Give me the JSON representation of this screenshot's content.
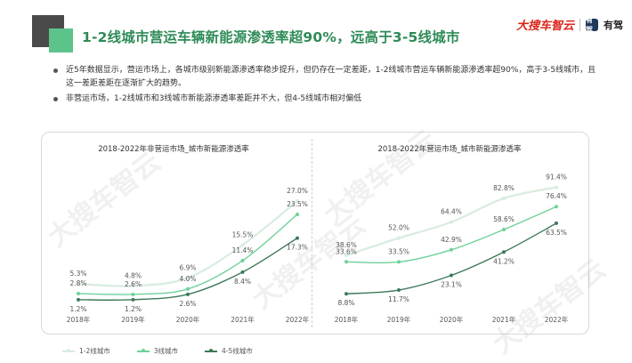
{
  "header": {
    "title": "1-2线城市营运车辆新能源渗透率超90%，远高于3-5线城市",
    "brand_a": "大搜车智云",
    "brand_b_icon": "有驾",
    "brand_b": "有驾"
  },
  "bullets": [
    "近5年数据显示，营运市场上，各城市级别新能源渗透率稳步提升，但仍存在一定差距，1-2线城市营运车辆新能源渗透率超90%，高于3-5线城市，且这一差距差距在逐渐扩大的趋势。",
    "非营运市场，1-2线城市和3线城市新能源渗透率差距并不大，但4-5线城市相对偏低"
  ],
  "watermark": "大搜车智云",
  "legend": [
    "1-2线城市",
    "3线城市",
    "4-5线城市"
  ],
  "colors": {
    "series1": "#d8ecdf",
    "series2": "#6fd19a",
    "series3": "#3d7a5a",
    "title": "#2e8b57"
  },
  "chart_data": [
    {
      "type": "line",
      "title": "2018-2022年非营运市场_城市新能源渗透率",
      "x": [
        "2018年",
        "2019年",
        "2020年",
        "2021年",
        "2022年"
      ],
      "series": [
        {
          "name": "1-2线城市",
          "values": [
            5.3,
            4.8,
            6.9,
            15.5,
            27.0
          ],
          "labels": [
            "5.3%",
            "4.8%",
            "6.9%",
            "15.5%",
            "27.0%"
          ]
        },
        {
          "name": "3线城市",
          "values": [
            2.8,
            2.6,
            4.0,
            11.4,
            23.5
          ],
          "labels": [
            "2.8%",
            "2.6%",
            "4.0%",
            "11.4%",
            "23.5%"
          ]
        },
        {
          "name": "4-5线城市",
          "values": [
            1.2,
            1.2,
            2.6,
            8.4,
            17.3
          ],
          "labels": [
            "1.2%",
            "1.2%",
            "2.6%",
            "8.4%",
            "17.3%"
          ]
        }
      ],
      "xlabel": "",
      "ylabel": "",
      "unit": "%",
      "grid": false,
      "legend": "bottom"
    },
    {
      "type": "line",
      "title": "2018-2022年营运市场_城市新能源渗透率",
      "x": [
        "2018年",
        "2019年",
        "2020年",
        "2021年",
        "2022年"
      ],
      "series": [
        {
          "name": "1-2线城市",
          "values": [
            38.6,
            52.0,
            64.4,
            82.8,
            91.4
          ],
          "labels": [
            "38.6%",
            "52.0%",
            "64.4%",
            "82.8%",
            "91.4%"
          ]
        },
        {
          "name": "3线城市",
          "values": [
            33.6,
            33.5,
            42.9,
            58.6,
            76.4
          ],
          "labels": [
            "33.6%",
            "33.5%",
            "42.9%",
            "58.6%",
            "76.4%"
          ]
        },
        {
          "name": "4-5线城市",
          "values": [
            8.8,
            11.7,
            23.1,
            41.2,
            63.5
          ],
          "labels": [
            "8.8%",
            "11.7%",
            "23.1%",
            "41.2%",
            "63.5%"
          ]
        }
      ],
      "xlabel": "",
      "ylabel": "",
      "unit": "%",
      "grid": false,
      "legend": "bottom"
    }
  ]
}
